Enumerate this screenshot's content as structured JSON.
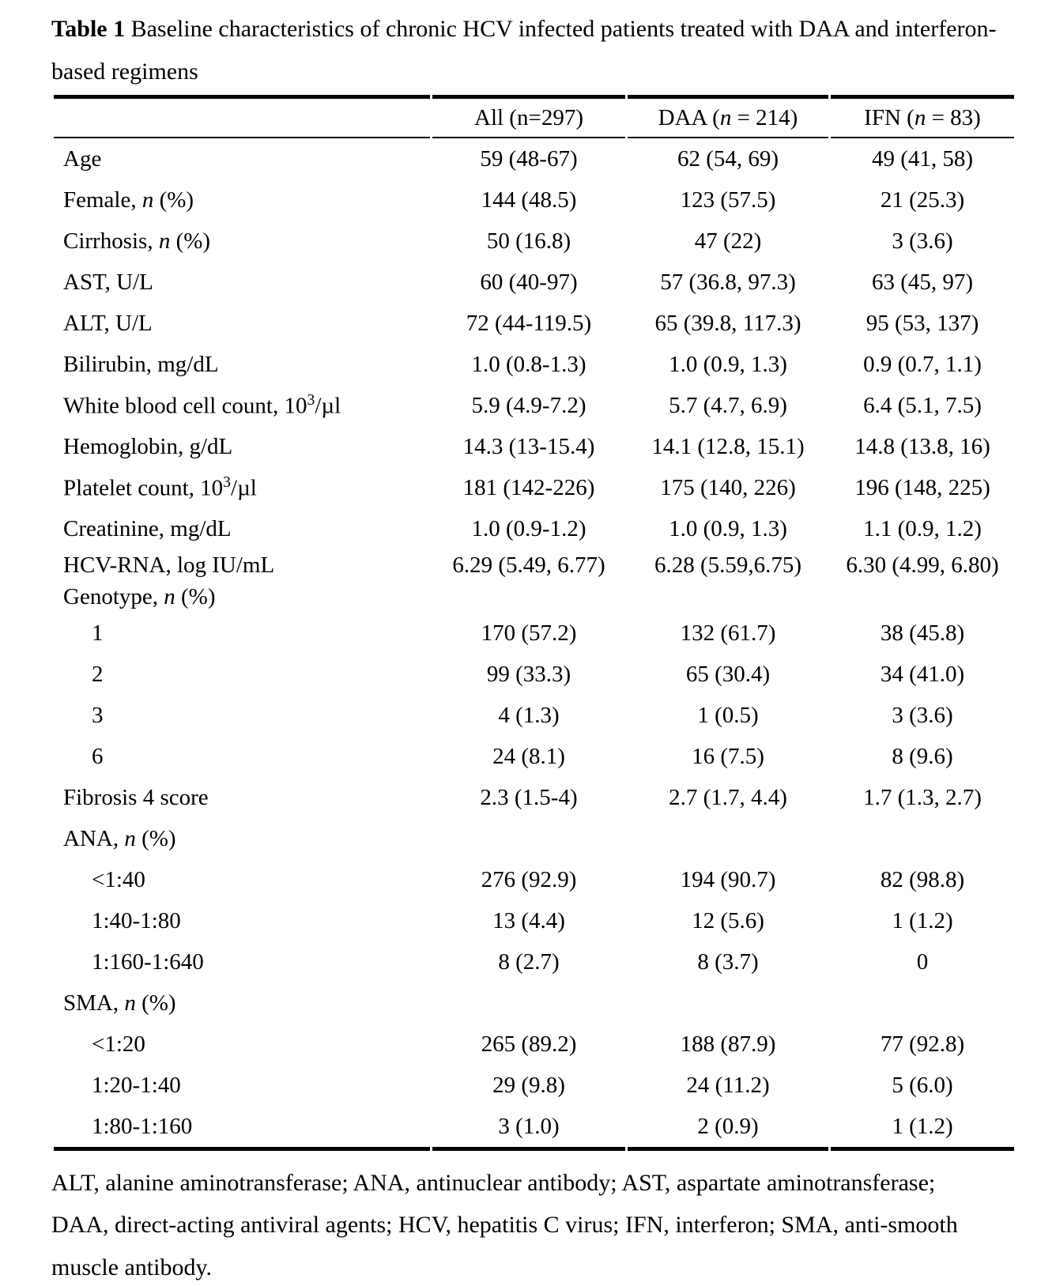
{
  "title": {
    "label": "Table 1",
    "text": " Baseline characteristics of chronic HCV infected patients treated with DAA and interferon-based regimens"
  },
  "columns": [
    {
      "segments": [
        {
          "t": "All (n=297)"
        }
      ]
    },
    {
      "segments": [
        {
          "t": "DAA ("
        },
        {
          "t": "n",
          "i": true
        },
        {
          "t": " = 214)"
        }
      ]
    },
    {
      "segments": [
        {
          "t": "IFN ("
        },
        {
          "t": "n",
          "i": true
        },
        {
          "t": " = 83)"
        }
      ]
    }
  ],
  "rows": [
    {
      "label": [
        {
          "t": "Age"
        }
      ],
      "values": [
        "59 (48-67)",
        "62 (54, 69)",
        "49 (41, 58)"
      ]
    },
    {
      "label": [
        {
          "t": "Female, "
        },
        {
          "t": "n",
          "i": true
        },
        {
          "t": " (%)"
        }
      ],
      "values": [
        "144 (48.5)",
        "123 (57.5)",
        "21 (25.3)"
      ]
    },
    {
      "label": [
        {
          "t": "Cirrhosis, "
        },
        {
          "t": "n",
          "i": true
        },
        {
          "t": " (%)"
        }
      ],
      "values": [
        "50 (16.8)",
        "47 (22)",
        "3 (3.6)"
      ]
    },
    {
      "label": [
        {
          "t": "AST, U/L"
        }
      ],
      "values": [
        "60 (40-97)",
        "57 (36.8, 97.3)",
        "63 (45, 97)"
      ]
    },
    {
      "label": [
        {
          "t": "ALT, U/L"
        }
      ],
      "values": [
        "72 (44-119.5)",
        "65 (39.8, 117.3)",
        "95 (53, 137)"
      ]
    },
    {
      "label": [
        {
          "t": "Bilirubin, mg/dL"
        }
      ],
      "values": [
        "1.0 (0.8-1.3)",
        "1.0 (0.9, 1.3)",
        "0.9 (0.7, 1.1)"
      ]
    },
    {
      "label": [
        {
          "t": "White blood cell count, 10"
        },
        {
          "t": "3",
          "sup": true
        },
        {
          "t": "/µl"
        }
      ],
      "values": [
        "5.9 (4.9-7.2)",
        "5.7 (4.7, 6.9)",
        "6.4 (5.1, 7.5)"
      ]
    },
    {
      "label": [
        {
          "t": "Hemoglobin, g/dL"
        }
      ],
      "values": [
        "14.3 (13-15.4)",
        "14.1 (12.8, 15.1)",
        "14.8 (13.8, 16)"
      ]
    },
    {
      "label": [
        {
          "t": "Platelet count, 10"
        },
        {
          "t": "3",
          "sup": true
        },
        {
          "t": "/µl"
        }
      ],
      "values": [
        "181 (142-226)",
        "175 (140, 226)",
        "196 (148, 225)"
      ]
    },
    {
      "label": [
        {
          "t": "Creatinine, mg/dL"
        }
      ],
      "values": [
        "1.0 (0.9-1.2)",
        "1.0 (0.9, 1.3)",
        "1.1 (0.9, 1.2)"
      ]
    },
    {
      "label": [
        {
          "t": "HCV-RNA, log IU/mL"
        }
      ],
      "values": [
        "6.29 (5.49, 6.77)",
        "6.28 (5.59,6.75)",
        "6.30 (4.99, 6.80)"
      ],
      "compact": true
    },
    {
      "label": [
        {
          "t": "Genotype, "
        },
        {
          "t": "n",
          "i": true
        },
        {
          "t": " (%)"
        }
      ],
      "values": [
        "",
        "",
        ""
      ],
      "compact": true
    },
    {
      "label": [
        {
          "t": "1"
        }
      ],
      "indent": true,
      "values": [
        "170 (57.2)",
        "132 (61.7)",
        "38 (45.8)"
      ]
    },
    {
      "label": [
        {
          "t": "2"
        }
      ],
      "indent": true,
      "values": [
        "99 (33.3)",
        "65 (30.4)",
        "34 (41.0)"
      ]
    },
    {
      "label": [
        {
          "t": "3"
        }
      ],
      "indent": true,
      "values": [
        "4 (1.3)",
        "1 (0.5)",
        "3 (3.6)"
      ]
    },
    {
      "label": [
        {
          "t": "6"
        }
      ],
      "indent": true,
      "values": [
        "24 (8.1)",
        "16 (7.5)",
        "8 (9.6)"
      ]
    },
    {
      "label": [
        {
          "t": "Fibrosis 4 score"
        }
      ],
      "values": [
        "2.3 (1.5-4)",
        "2.7 (1.7, 4.4)",
        "1.7 (1.3, 2.7)"
      ]
    },
    {
      "label": [
        {
          "t": "ANA, "
        },
        {
          "t": "n",
          "i": true
        },
        {
          "t": " (%)"
        }
      ],
      "values": [
        "",
        "",
        ""
      ]
    },
    {
      "label": [
        {
          "t": "<1:40"
        }
      ],
      "indent": true,
      "values": [
        "276 (92.9)",
        "194 (90.7)",
        "82 (98.8)"
      ]
    },
    {
      "label": [
        {
          "t": "1:40-1:80"
        }
      ],
      "indent": true,
      "values": [
        "13 (4.4)",
        "12 (5.6)",
        "1 (1.2)"
      ]
    },
    {
      "label": [
        {
          "t": "1:160-1:640"
        }
      ],
      "indent": true,
      "values": [
        "8 (2.7)",
        "8 (3.7)",
        "0"
      ]
    },
    {
      "label": [
        {
          "t": "SMA, "
        },
        {
          "t": "n",
          "i": true
        },
        {
          "t": " (%)"
        }
      ],
      "values": [
        "",
        "",
        ""
      ]
    },
    {
      "label": [
        {
          "t": "<1:20"
        }
      ],
      "indent": true,
      "values": [
        "265 (89.2)",
        "188 (87.9)",
        "77 (92.8)"
      ]
    },
    {
      "label": [
        {
          "t": "1:20-1:40"
        }
      ],
      "indent": true,
      "values": [
        "29 (9.8)",
        "24 (11.2)",
        "5 (6.0)"
      ]
    },
    {
      "label": [
        {
          "t": "1:80-1:160"
        }
      ],
      "indent": true,
      "values": [
        "3 (1.0)",
        "2 (0.9)",
        "1 (1.2)"
      ]
    }
  ],
  "footnote": "ALT, alanine aminotransferase; ANA, antinuclear antibody; AST, aspartate aminotransferase; DAA, direct-acting antiviral agents; HCV, hepatitis C virus; IFN, interferon; SMA, anti-smooth muscle antibody.",
  "colors": {
    "text": "#000000",
    "background": "#ffffff",
    "rule": "#000000"
  }
}
